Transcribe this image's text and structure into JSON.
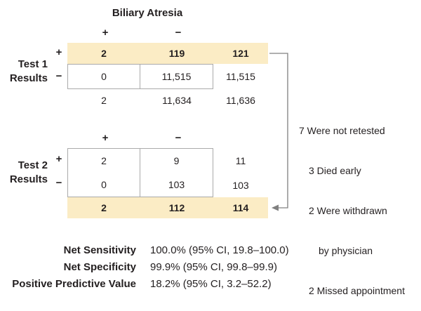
{
  "header": {
    "title": "Biliary Atresia",
    "col_plus": "+",
    "col_minus": "−"
  },
  "test1": {
    "label_line1": "Test 1",
    "label_line2": "Results",
    "row_plus": "+",
    "row_minus": "−",
    "rows": [
      [
        "2",
        "119",
        "121"
      ],
      [
        "0",
        "11,515",
        "11,515"
      ]
    ],
    "totals": [
      "2",
      "11,634",
      "11,636"
    ]
  },
  "test2": {
    "col_plus": "+",
    "col_minus": "−",
    "label_line1": "Test 2",
    "label_line2": "Results",
    "row_plus": "+",
    "row_minus": "−",
    "rows": [
      [
        "2",
        "9",
        "11"
      ],
      [
        "0",
        "103",
        "103"
      ]
    ],
    "totals": [
      "2",
      "112",
      "114"
    ]
  },
  "note": {
    "line1": "7 Were not retested",
    "line2": "3 Died early",
    "line3": "2 Were withdrawn",
    "line4": "by physician",
    "line5": "2 Missed appointment"
  },
  "stats": [
    {
      "label": "Net Sensitivity",
      "value": "100.0% (95% CI, 19.8–100.0)"
    },
    {
      "label": "Net Specificity",
      "value": "99.9% (95% CI, 99.8–99.9)"
    },
    {
      "label": "Positive Predictive Value",
      "value": "18.2% (95% CI, 3.2–52.2)"
    }
  ],
  "colors": {
    "highlight": "#fbecc5",
    "border": "#aaaaaa",
    "arrow": "#808080"
  }
}
